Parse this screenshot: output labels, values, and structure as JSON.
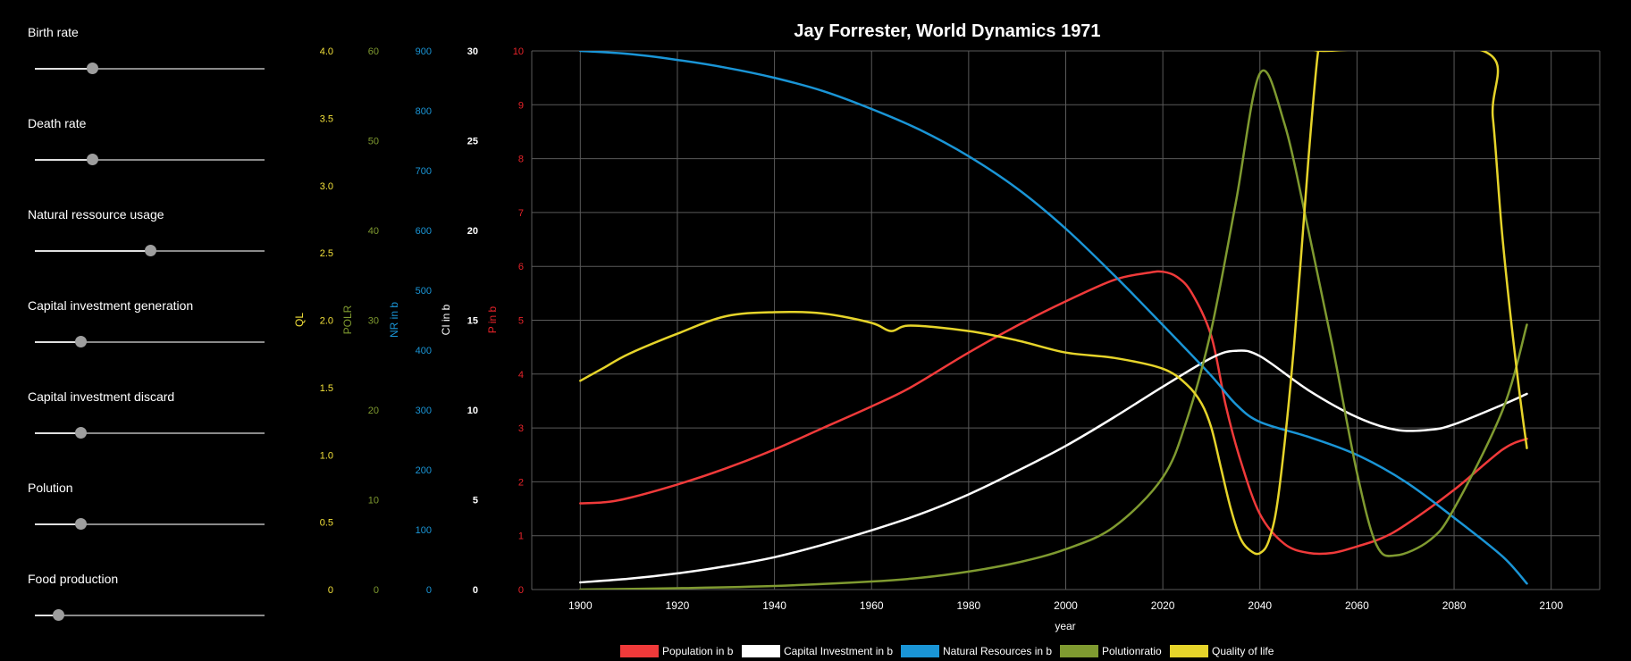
{
  "sliders": [
    {
      "label": "Birth rate",
      "level": 0.25
    },
    {
      "label": "Death rate",
      "level": 0.25
    },
    {
      "label": "Natural ressource usage",
      "level": 0.5
    },
    {
      "label": "Capital investment generation",
      "level": 0.2
    },
    {
      "label": "Capital investment discard",
      "level": 0.2
    },
    {
      "label": "Polution",
      "level": 0.2
    },
    {
      "label": "Food production",
      "level": 0.1
    }
  ],
  "chart_data": {
    "type": "line",
    "title": "Jay Forrester, World Dynamics 1971",
    "xlabel": "year",
    "xlim": [
      1890,
      2110
    ],
    "xticks": [
      1900,
      1920,
      1940,
      1960,
      1980,
      2000,
      2020,
      2040,
      2060,
      2080,
      2100
    ],
    "grid": true,
    "legend_position": "bottom",
    "y_axes": [
      {
        "id": "QL",
        "label": "QL",
        "color": "#f2e03a",
        "min": 0,
        "max": 4,
        "ticks": [
          "0",
          "0.5",
          "1.0",
          "1.5",
          "2.0",
          "2.5",
          "3.0",
          "3.5",
          "4.0"
        ]
      },
      {
        "id": "POLR",
        "label": "POLR",
        "color": "#7f9a30",
        "min": 0,
        "max": 60,
        "ticks": [
          "0",
          "10",
          "20",
          "30",
          "40",
          "50",
          "60"
        ]
      },
      {
        "id": "NR",
        "label": "NR in b",
        "color": "#1a95d6",
        "min": 0,
        "max": 900,
        "ticks": [
          "0",
          "100",
          "200",
          "300",
          "400",
          "500",
          "600",
          "700",
          "800",
          "900"
        ]
      },
      {
        "id": "CI",
        "label": "CI in b",
        "color": "#ffffff",
        "min": 0,
        "max": 30,
        "ticks": [
          "0",
          "5",
          "10",
          "15",
          "20",
          "25",
          "30"
        ]
      },
      {
        "id": "P",
        "label": "P in b",
        "color": "#e8232a",
        "min": 0,
        "max": 10,
        "ticks": [
          "0",
          "1",
          "2",
          "3",
          "4",
          "5",
          "6",
          "7",
          "8",
          "9",
          "10"
        ]
      }
    ],
    "series": [
      {
        "name": "Population in b",
        "axis": "P",
        "color": "#f03a3a",
        "x": [
          1900,
          1905,
          1910,
          1920,
          1930,
          1940,
          1950,
          1960,
          1968,
          1980,
          1990,
          2000,
          2010,
          2017,
          2020,
          2023,
          2026,
          2030,
          2033,
          2036,
          2040,
          2045,
          2050,
          2055,
          2060,
          2065,
          2070,
          2080,
          2090,
          2095
        ],
        "y": [
          1.6,
          1.62,
          1.7,
          1.95,
          2.25,
          2.6,
          3.0,
          3.4,
          3.75,
          4.4,
          4.9,
          5.35,
          5.75,
          5.88,
          5.9,
          5.8,
          5.5,
          4.7,
          3.4,
          2.4,
          1.4,
          0.85,
          0.68,
          0.68,
          0.8,
          0.95,
          1.2,
          1.85,
          2.6,
          2.8
        ]
      },
      {
        "name": "Capital Investment in b",
        "axis": "CI",
        "color": "#ffffff",
        "x": [
          1900,
          1910,
          1920,
          1930,
          1940,
          1950,
          1960,
          1970,
          1980,
          1990,
          2000,
          2010,
          2020,
          2030,
          2035,
          2040,
          2050,
          2060,
          2068,
          2075,
          2080,
          2090,
          2095
        ],
        "y": [
          0.4,
          0.6,
          0.9,
          1.3,
          1.8,
          2.5,
          3.3,
          4.2,
          5.3,
          6.6,
          8.0,
          9.6,
          11.3,
          12.9,
          13.3,
          13.0,
          11.1,
          9.6,
          8.9,
          8.9,
          9.2,
          10.3,
          10.9
        ]
      },
      {
        "name": "Natural Resources in b",
        "axis": "NR",
        "color": "#1a95d6",
        "x": [
          1900,
          1910,
          1920,
          1930,
          1940,
          1950,
          1960,
          1970,
          1980,
          1990,
          2000,
          2010,
          2020,
          2030,
          2035,
          2040,
          2050,
          2060,
          2070,
          2080,
          2090,
          2095
        ],
        "y": [
          900,
          895,
          885,
          872,
          855,
          833,
          803,
          768,
          724,
          670,
          603,
          525,
          442,
          357,
          310,
          280,
          255,
          225,
          180,
          120,
          55,
          10
        ]
      },
      {
        "name": "Polutionratio",
        "axis": "POLR",
        "color": "#7f9a30",
        "x": [
          1900,
          1920,
          1940,
          1960,
          1970,
          1980,
          1990,
          2000,
          2010,
          2020,
          2025,
          2030,
          2035,
          2040,
          2045,
          2050,
          2055,
          2060,
          2064,
          2068,
          2075,
          2080,
          2090,
          2095
        ],
        "y": [
          0,
          0.15,
          0.4,
          0.9,
          1.3,
          2.0,
          3.0,
          4.5,
          7.0,
          12.5,
          19.0,
          29.0,
          43.0,
          57.5,
          52.0,
          40.0,
          27.0,
          13.0,
          5.0,
          3.8,
          5.5,
          9.0,
          20.0,
          29.5
        ]
      },
      {
        "name": "Quality of life",
        "axis": "QL",
        "color": "#e6d42a",
        "x": [
          1900,
          1905,
          1910,
          1920,
          1930,
          1940,
          1950,
          1960,
          1964,
          1968,
          1980,
          1990,
          2000,
          2010,
          2020,
          2025,
          2028,
          2030,
          2032,
          2034,
          2036,
          2038,
          2040,
          2042,
          2044,
          2047,
          2050,
          2052,
          2053,
          2086,
          2088,
          2090,
          2093,
          2095
        ],
        "y": [
          1.55,
          1.65,
          1.75,
          1.9,
          2.03,
          2.06,
          2.05,
          1.98,
          1.92,
          1.96,
          1.92,
          1.85,
          1.76,
          1.72,
          1.64,
          1.52,
          1.38,
          1.2,
          0.9,
          0.6,
          0.38,
          0.29,
          0.27,
          0.38,
          0.75,
          1.8,
          3.2,
          4.0,
          4.0,
          4.0,
          3.5,
          2.6,
          1.6,
          1.05
        ]
      }
    ]
  }
}
